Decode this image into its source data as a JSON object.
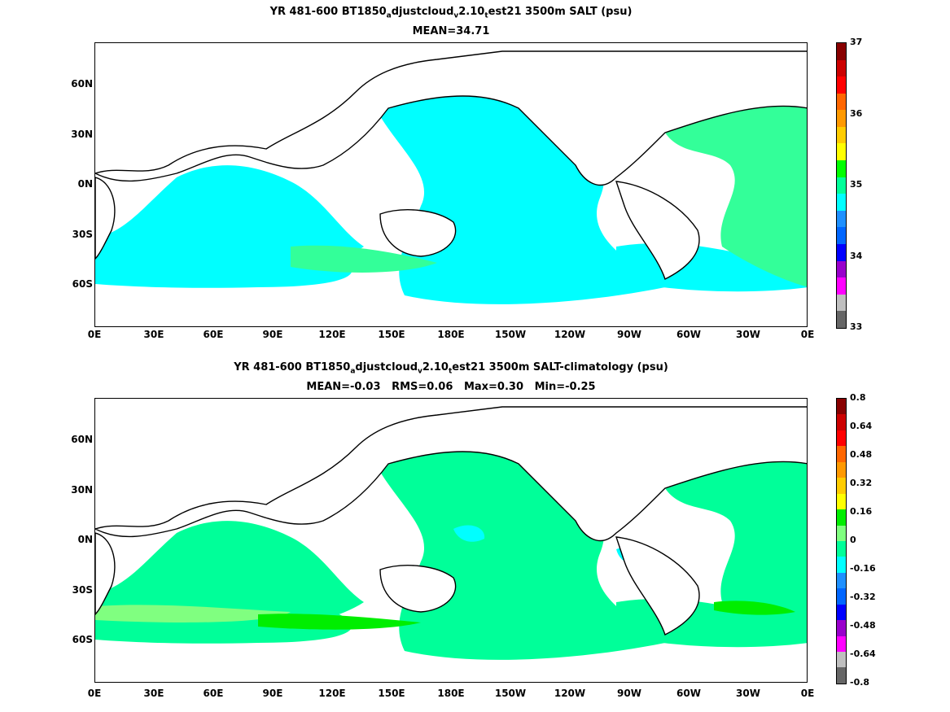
{
  "panels": [
    {
      "title_parts": [
        "YR 481-600 BT1850",
        "a",
        "djustcloud",
        "v",
        "2.10",
        "t",
        "est21 3500m SALT (psu)"
      ],
      "stats": "MEAN=34.71",
      "colorbar": {
        "colors": [
          "#666666",
          "#bfbfbf",
          "#ff00ff",
          "#9900cc",
          "#0000ff",
          "#0066ff",
          "#1e90ff",
          "#00ffff",
          "#00ff99",
          "#00ff00",
          "#ffff00",
          "#ffcc00",
          "#ff9900",
          "#ff6600",
          "#ff0000",
          "#cc0000",
          "#880000"
        ],
        "tick_labels": [
          "33",
          "34",
          "35",
          "36",
          "37"
        ]
      },
      "field": {
        "base_color": "#00ffff",
        "accent_color": "#33ff99",
        "description_levels": "fresh-cyan Pacific/Indian, green Atlantic"
      }
    },
    {
      "title_parts": [
        "YR 481-600 BT1850",
        "a",
        "djustcloud",
        "v",
        "2.10",
        "t",
        "est21 3500m SALT-climatology (psu)"
      ],
      "stats": "MEAN=-0.03   RMS=0.06   Max=0.30   Min=-0.25",
      "colorbar": {
        "colors": [
          "#666666",
          "#bfbfbf",
          "#ff00ff",
          "#9900cc",
          "#0000ff",
          "#0066ff",
          "#1e90ff",
          "#00ffff",
          "#00ff99",
          "#80ff80",
          "#00ee00",
          "#ffff00",
          "#ffcc00",
          "#ff9900",
          "#ff6600",
          "#ff0000",
          "#cc0000",
          "#880000"
        ],
        "tick_labels": [
          "-0.8",
          "-0.64",
          "-0.48",
          "-0.32",
          "-0.16",
          "0",
          "0.16",
          "0.32",
          "0.48",
          "0.64",
          "0.8"
        ]
      },
      "field": {
        "base_color": "#00ff99",
        "accent_color": "#80ff80"
      }
    }
  ],
  "axes": {
    "lat_labels": [
      "60N",
      "30N",
      "0N",
      "30S",
      "60S"
    ],
    "lon_labels": [
      "0E",
      "30E",
      "60E",
      "90E",
      "120E",
      "150E",
      "180E",
      "150W",
      "120W",
      "90W",
      "60W",
      "30W",
      "0E"
    ]
  }
}
